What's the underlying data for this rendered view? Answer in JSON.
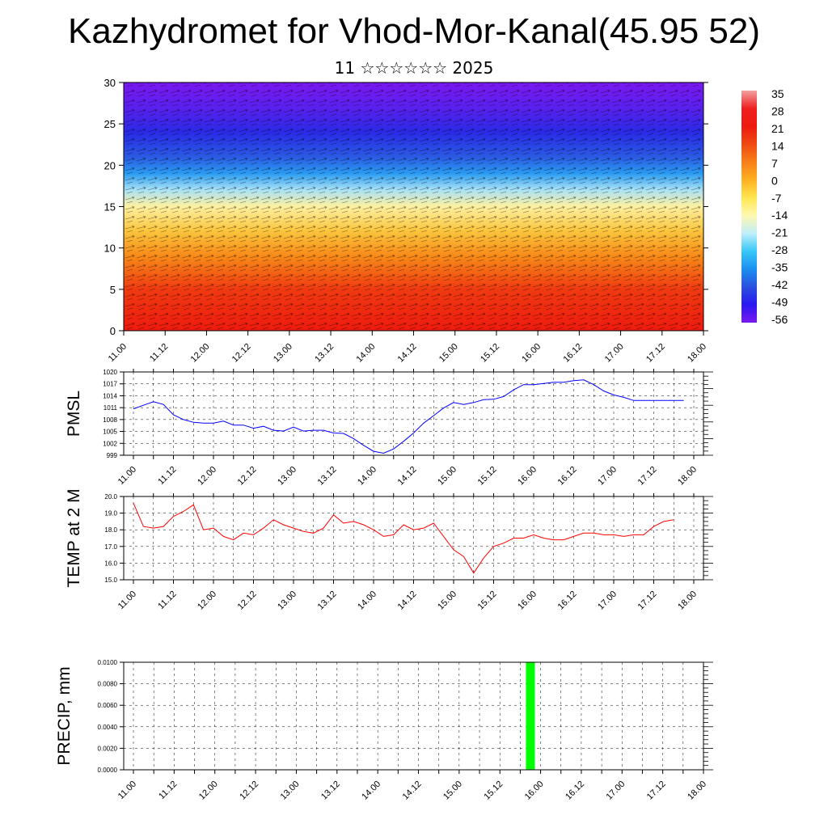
{
  "header": {
    "title": "Kazhydromet for Vhod-Mor-Kanal(45.95 52)",
    "subtitle": "11 ☆☆☆☆☆☆ 2025"
  },
  "chart_data": [
    {
      "type": "heatmap",
      "ylim": [
        0,
        30
      ],
      "y_ticks": [
        "0",
        "5",
        "10",
        "15",
        "20",
        "25",
        "30"
      ],
      "x_ticks": [
        "11.00",
        "11.12",
        "12.00",
        "12.12",
        "13.00",
        "13.12",
        "14.00",
        "14.12",
        "15.00",
        "15.12",
        "16.00",
        "16.12",
        "17.00",
        "17.12",
        "18.00"
      ],
      "colorbar": {
        "labels": [
          "35",
          "28",
          "21",
          "14",
          "7",
          "0",
          "-7",
          "-14",
          "-21",
          "-28",
          "-35",
          "-42",
          "-49",
          "-56"
        ],
        "colors": [
          "#f4a0a0",
          "#ee2020",
          "#ee1a10",
          "#f04a10",
          "#f88018",
          "#ffb020",
          "#ffe650",
          "#fff8b0",
          "#c0eefa",
          "#38c8f8",
          "#1a90f0",
          "#2a50e0",
          "#2a18f0",
          "#7a18f0"
        ]
      },
      "field_rows": [
        {
          "level": 30,
          "color": "#7a18f0"
        },
        {
          "level": 27,
          "color": "#5a20ee"
        },
        {
          "level": 24,
          "color": "#2a2ae6"
        },
        {
          "level": 21,
          "color": "#2a5ae4"
        },
        {
          "level": 19,
          "color": "#2a9cf2"
        },
        {
          "level": 17,
          "color": "#a8e2f6"
        },
        {
          "level": 15,
          "color": "#fff0a0"
        },
        {
          "level": 12,
          "color": "#fbc43c"
        },
        {
          "level": 9,
          "color": "#f88a18"
        },
        {
          "level": 5,
          "color": "#f03a10"
        },
        {
          "level": 0,
          "color": "#ee1a0e"
        }
      ]
    },
    {
      "type": "line",
      "ylabel": "PMSL",
      "ylim": [
        999,
        1020
      ],
      "y_ticks": [
        "999",
        "1002",
        "1005",
        "1008",
        "1011",
        "1014",
        "1017",
        "1020"
      ],
      "x_ticks": [
        "11.00",
        "11.12",
        "12.00",
        "12.12",
        "13.00",
        "13.12",
        "14.00",
        "14.12",
        "15.00",
        "15.12",
        "16.00",
        "16.12",
        "17.00",
        "17.12",
        "18.00"
      ],
      "color": "#0000ff",
      "x": [
        0,
        3,
        6,
        9,
        12,
        15,
        18,
        21,
        24,
        27,
        30,
        33,
        36,
        39,
        42,
        45,
        48,
        51,
        54,
        57,
        60,
        63,
        66,
        69,
        72,
        75,
        78,
        81,
        84,
        87,
        90,
        93,
        96,
        99,
        102,
        105,
        108,
        111,
        114,
        117,
        120,
        123,
        126,
        129,
        132,
        135,
        138,
        141,
        144,
        147,
        150,
        153,
        156,
        159,
        162,
        165
      ],
      "values": [
        1010.7,
        1011.6,
        1012.5,
        1011.8,
        1009.2,
        1008.0,
        1007.3,
        1007.1,
        1007.1,
        1007.6,
        1006.6,
        1006.6,
        1005.8,
        1006.3,
        1005.3,
        1005.1,
        1006.1,
        1005.1,
        1005.3,
        1005.3,
        1004.6,
        1004.5,
        1003.2,
        1001.5,
        1000.0,
        999.5,
        1000.6,
        1002.5,
        1004.6,
        1007.1,
        1009.0,
        1010.9,
        1012.3,
        1011.8,
        1012.3,
        1013.0,
        1013.1,
        1013.8,
        1015.5,
        1016.8,
        1016.8,
        1017.1,
        1017.4,
        1017.4,
        1017.8,
        1018.0,
        1016.8,
        1015.2,
        1014.2,
        1013.6,
        1012.8,
        1012.8,
        1012.8,
        1012.8,
        1012.8,
        1012.8
      ]
    },
    {
      "type": "line",
      "ylabel": "TEMP at 2 M",
      "ylim": [
        15.0,
        20.0
      ],
      "y_ticks": [
        "15.0",
        "16.0",
        "17.0",
        "18.0",
        "19.0",
        "20.0"
      ],
      "x_ticks": [
        "11.00",
        "11.12",
        "12.00",
        "12.12",
        "13.00",
        "13.12",
        "14.00",
        "14.12",
        "15.00",
        "15.12",
        "16.00",
        "16.12",
        "17.00",
        "17.12",
        "18.00"
      ],
      "color": "#ff0000",
      "x": [
        0,
        3,
        6,
        9,
        12,
        15,
        18,
        21,
        24,
        27,
        30,
        33,
        36,
        39,
        42,
        45,
        48,
        51,
        54,
        57,
        60,
        63,
        66,
        69,
        72,
        75,
        78,
        81,
        84,
        87,
        90,
        93,
        96,
        99,
        102,
        105,
        108,
        111,
        114,
        117,
        120,
        123,
        126,
        129,
        132,
        135,
        138,
        141,
        144,
        147,
        150,
        153,
        156,
        159,
        162
      ],
      "values": [
        19.6,
        18.2,
        18.1,
        18.2,
        18.8,
        19.1,
        19.5,
        18.0,
        18.1,
        17.6,
        17.4,
        17.8,
        17.7,
        18.1,
        18.6,
        18.3,
        18.1,
        17.9,
        17.8,
        18.1,
        18.9,
        18.4,
        18.5,
        18.3,
        18.0,
        17.6,
        17.7,
        18.3,
        18.0,
        18.1,
        18.4,
        17.6,
        16.8,
        16.4,
        15.4,
        16.3,
        17.0,
        17.2,
        17.5,
        17.5,
        17.7,
        17.5,
        17.4,
        17.4,
        17.6,
        17.8,
        17.8,
        17.7,
        17.7,
        17.6,
        17.7,
        17.7,
        18.2,
        18.5,
        18.6
      ]
    },
    {
      "type": "bar",
      "ylabel": "PRECIP, mm",
      "ylim": [
        0.0,
        0.01
      ],
      "y_ticks": [
        "0.0000",
        "0.0020",
        "0.0040",
        "0.0060",
        "0.0080",
        "0.0100"
      ],
      "x_ticks": [
        "11.00",
        "11.12",
        "12.00",
        "12.12",
        "13.00",
        "13.12",
        "14.00",
        "14.12",
        "15.00",
        "15.12",
        "16.00",
        "16.12",
        "17.00",
        "17.12",
        "18.00"
      ],
      "color": "#00ff00",
      "bars": [
        {
          "x": 117,
          "value": 0.01
        }
      ]
    }
  ]
}
